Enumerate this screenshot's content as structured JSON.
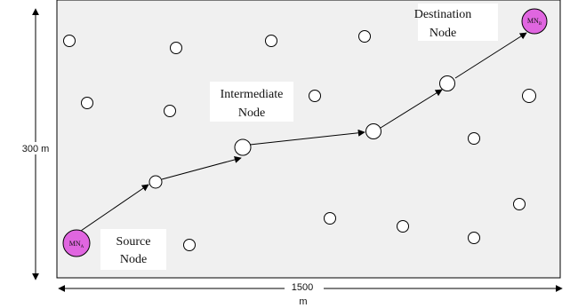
{
  "labels": {
    "source": [
      "Source",
      "Node"
    ],
    "intermediate": [
      "Intermediate",
      "Node"
    ],
    "destination": [
      "Destination",
      "Node"
    ]
  },
  "axes": {
    "height": "300 m",
    "width_value": "1500",
    "width_unit": "m"
  },
  "special_nodes": {
    "source": {
      "main": "MN",
      "sub": "A"
    },
    "destination": {
      "main": "MN",
      "sub": "B"
    }
  },
  "colors": {
    "field_bg": "#f0f0f0",
    "special_node_fill": "#e066e0",
    "node_fill": "#ffffff",
    "stroke": "#000000"
  }
}
